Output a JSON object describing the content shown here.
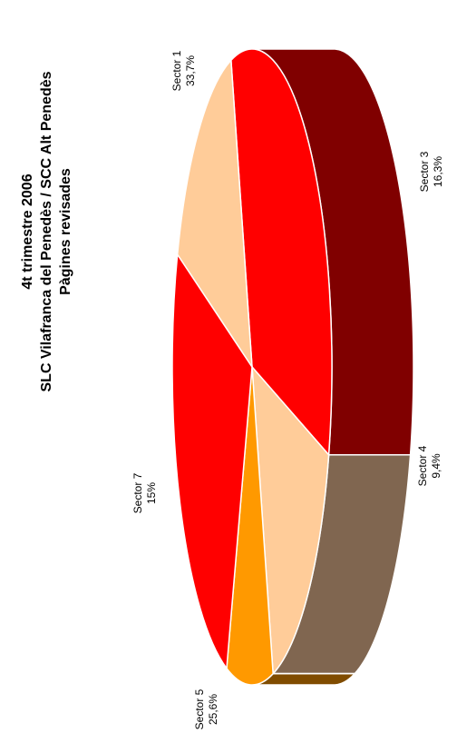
{
  "chart_data": {
    "type": "pie",
    "title_lines": [
      "4t trimestre 2006",
      "SLC Vilafranca del Penedès / SCC Alt Penedès",
      "Pàgines revisades"
    ],
    "slices": [
      {
        "label": "Sector 1",
        "value_text": "33,7%",
        "value": 33.7,
        "top_color": "#ff0000",
        "side_color": "#800000"
      },
      {
        "label": "Sector 3",
        "value_text": "16,3%",
        "value": 16.3,
        "top_color": "#ffcc99",
        "side_color": "#806650"
      },
      {
        "label": "Sector 4",
        "value_text": "9,4%",
        "value": 9.4,
        "top_color": "#ff9900",
        "side_color": "#804c00"
      },
      {
        "label": "Sector 5",
        "value_text": "25,6%",
        "value": 25.6,
        "top_color": "#ff0000",
        "side_color": "#800000"
      },
      {
        "label": "Sector 7",
        "value_text": "15%",
        "value": 15.0,
        "top_color": "#ffcc99",
        "side_color": "#806650"
      }
    ],
    "style_3d": true,
    "legend": "none"
  }
}
